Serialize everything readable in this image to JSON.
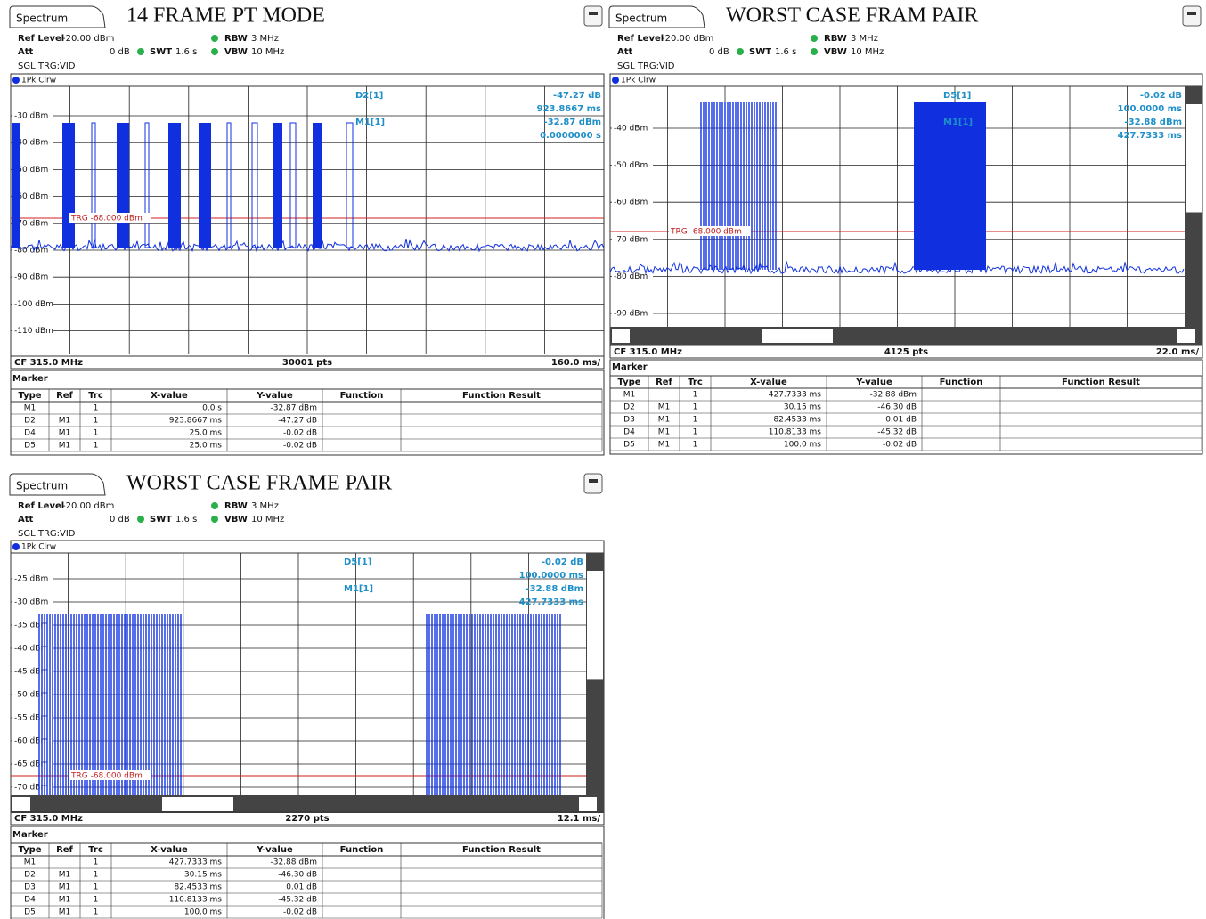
{
  "panels": [
    {
      "tab": "Spectrum",
      "title": "14 FRAME PT MODE",
      "settings": {
        "ref_level": "Ref Level",
        "ref_value": "-20.00 dBm",
        "rbw": "RBW",
        "rbw_value": "3 MHz",
        "att": "Att",
        "att_value": "0 dB",
        "swt": "SWT",
        "swt_value": "1.6 s",
        "vbw": "VBW",
        "vbw_value": "10 MHz",
        "mode": "SGL TRG:VID"
      },
      "trace_label": "1Pk Clrw",
      "y_labels": [
        "-30 dBm",
        "-40 dBm",
        "-50 dBm",
        "-60 dBm",
        "-70 dBm",
        "-80 dBm",
        "-90 dBm",
        "-100 dBm",
        "-110 dBm"
      ],
      "readout": [
        [
          "D2[1]",
          "-47.27 dB",
          "923.8667 ms"
        ],
        [
          "M1[1]",
          "-32.87 dBm",
          "0.0000000 s"
        ]
      ],
      "trigger": "TRG -68.000 dBm",
      "footer": {
        "center_freq": "CF 315.0 MHz",
        "points": "30001 pts",
        "span": "160.0 ms/"
      },
      "marker_title": "Marker",
      "table": {
        "header": [
          "Type",
          "Ref",
          "Trc",
          "X-value",
          "Y-value",
          "Function",
          "Function Result"
        ],
        "rows": [
          [
            "M1",
            null,
            "1",
            "0.0 s",
            "-32.87 dBm"
          ],
          [
            "D2",
            "M1",
            "1",
            "923.8667 ms",
            "-47.27 dB"
          ],
          [
            "D4",
            "M1",
            "1",
            "25.0 ms",
            "-0.02 dB"
          ],
          [
            "D5",
            "M1",
            "1",
            "25.0 ms",
            "-0.02 dB"
          ]
        ]
      }
    },
    {
      "tab": "Spectrum",
      "title": "WORST CASE FRAM PAIR",
      "settings": {
        "ref_level": "Ref Level",
        "ref_value": "-20.00 dBm",
        "rbw": "RBW",
        "rbw_value": "3 MHz",
        "att": "Att",
        "att_value": "0 dB",
        "swt": "SWT",
        "swt_value": "1.6 s",
        "vbw": "VBW",
        "vbw_value": "10 MHz",
        "mode": "SGL TRG:VID"
      },
      "trace_label": "1Pk Clrw",
      "y_labels": [
        "-40 dBm",
        "-50 dBm",
        "-60 dBm",
        "-70 dBm",
        "-80 dBm",
        "-90 dBm"
      ],
      "readout": [
        [
          "D5[1]",
          "-0.02 dB",
          "100.0000 ms"
        ],
        [
          "M1[1]",
          "-32.88 dBm",
          "427.7333 ms"
        ]
      ],
      "trigger": "TRG -68.000 dBm",
      "footer": {
        "center_freq": "CF 315.0 MHz",
        "points": "4125 pts",
        "span": "22.0 ms/"
      },
      "marker_title": "Marker",
      "table": {
        "header": [
          "Type",
          "Ref",
          "Trc",
          "X-value",
          "Y-value",
          "Function",
          "Function Result"
        ],
        "rows": [
          [
            "M1",
            null,
            "1",
            "427.7333 ms",
            "-32.88 dBm"
          ],
          [
            "D2",
            "M1",
            "1",
            "30.15 ms",
            "-46.30 dB"
          ],
          [
            "D3",
            "M1",
            "1",
            "82.4533 ms",
            "0.01 dB"
          ],
          [
            "D4",
            "M1",
            "1",
            "110.8133 ms",
            "-45.32 dB"
          ],
          [
            "D5",
            "M1",
            "1",
            "100.0 ms",
            "-0.02 dB"
          ]
        ]
      }
    },
    {
      "tab": "Spectrum",
      "title": "WORST CASE FRAME PAIR",
      "settings": {
        "ref_level": "Ref Level",
        "ref_value": "-20.00 dBm",
        "rbw": "RBW",
        "rbw_value": "3 MHz",
        "att": "Att",
        "att_value": "0 dB",
        "swt": "SWT",
        "swt_value": "1.6 s",
        "vbw": "VBW",
        "vbw_value": "10 MHz",
        "mode": "SGL TRG:VID"
      },
      "trace_label": "1Pk Clrw",
      "y_labels": [
        "-25 dBm",
        "-30 dBm",
        "-35 dBm",
        "-40 dBm",
        "-45 dBm",
        "-50 dBm",
        "-55 dBm",
        "-60 dBm",
        "-65 dBm",
        "-70 dBm"
      ],
      "readout": [
        [
          "D5[1]",
          "-0.02 dB",
          "100.0000 ms"
        ],
        [
          "M1[1]",
          "-32.88 dBm",
          "427.7333 ms"
        ]
      ],
      "trigger": "TRG -68.000 dBm",
      "footer": {
        "center_freq": "CF 315.0 MHz",
        "points": "2270 pts",
        "span": "12.1 ms/"
      },
      "marker_title": "Marker",
      "table": {
        "header": [
          "Type",
          "Ref",
          "Trc",
          "X-value",
          "Y-value",
          "Function",
          "Function Result"
        ],
        "rows": [
          [
            "M1",
            null,
            "1",
            "427.7333 ms",
            "-32.88 dBm"
          ],
          [
            "D2",
            "M1",
            "1",
            "30.15 ms",
            "-46.30 dB"
          ],
          [
            "D3",
            "M1",
            "1",
            "82.4533 ms",
            "0.01 dB"
          ],
          [
            "D4",
            "M1",
            "1",
            "110.8133 ms",
            "-45.32 dB"
          ],
          [
            "D5",
            "M1",
            "1",
            "100.0 ms",
            "-0.02 dB"
          ]
        ]
      }
    }
  ]
}
